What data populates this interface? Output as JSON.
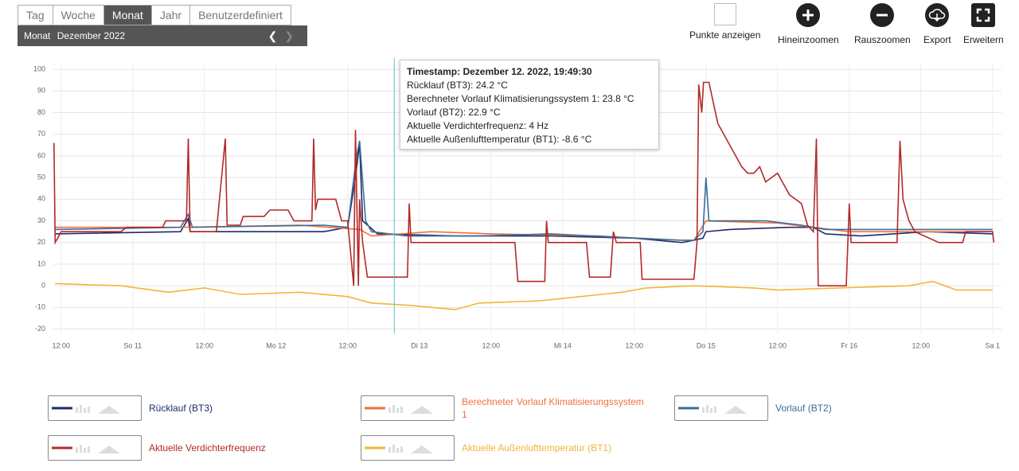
{
  "ui": {
    "tabs": [
      "Tag",
      "Woche",
      "Monat",
      "Jahr",
      "Benutzerdefiniert"
    ],
    "active_tab": 2,
    "period_label": "Monat",
    "period_value": "Dezember 2022",
    "toolbar": [
      "Punkte anzeigen",
      "Hineinzoomen",
      "Rauszoomen",
      "Export",
      "Erweitern"
    ]
  },
  "chart_data": {
    "type": "line",
    "xlim": [
      -1.3,
      157.5
    ],
    "ylim": [
      -22,
      103
    ],
    "yticks": [
      -20,
      -10,
      0,
      10,
      20,
      30,
      40,
      50,
      60,
      70,
      80,
      90,
      100
    ],
    "xticks": [
      {
        "value": 0,
        "label": "12:00"
      },
      {
        "value": 12,
        "label": "So 11"
      },
      {
        "value": 24,
        "label": "12:00"
      },
      {
        "value": 36,
        "label": "Mo 12"
      },
      {
        "value": 48,
        "label": "12:00"
      },
      {
        "value": 60,
        "label": "Di 13"
      },
      {
        "value": 72,
        "label": "12:00"
      },
      {
        "value": 84,
        "label": "Mi 14"
      },
      {
        "value": 96,
        "label": "12:00"
      },
      {
        "value": 108,
        "label": "Do 15"
      },
      {
        "value": 120,
        "label": "12:00"
      },
      {
        "value": 132,
        "label": "Fr 16"
      },
      {
        "value": 144,
        "label": "12:00"
      },
      {
        "value": 156,
        "label": "Sa 1"
      }
    ],
    "grid": true,
    "tooltip": {
      "x": 55.8,
      "timestamp": "Timestamp: Dezember 12. 2022, 19:49:30",
      "lines": [
        "Rücklauf (BT3): 24.2 °C",
        "Berechneter Vorlauf Klimatisierungssystem 1: 23.8 °C",
        "Vorlauf (BT2): 22.9 °C",
        "Aktuelle Verdichterfrequenz: 4 Hz",
        "Aktuelle Außenlufttemperatur (BT1): -8.6 °C"
      ]
    },
    "series": [
      {
        "name": "Rücklauf (BT3)",
        "color": "#1f2a6b",
        "x": [
          -1,
          20,
          21.3,
          21.6,
          44,
          48,
          49.3,
          50,
          50.5,
          53,
          66,
          82,
          96,
          104,
          106,
          107.5,
          108,
          112,
          122,
          126,
          128,
          134,
          145,
          156
        ],
        "values": [
          24,
          25,
          31,
          25,
          25,
          27,
          50,
          66,
          30,
          24,
          23,
          23,
          22,
          20,
          21,
          22,
          25,
          26,
          27,
          27,
          24,
          23,
          25,
          24
        ]
      },
      {
        "name": "Berechneter Vorlauf Klimatisierungssystem 1",
        "color": "#f0703a",
        "x": [
          -1,
          20,
          40,
          50,
          52,
          62,
          72,
          90,
          104,
          106,
          108,
          120,
          126,
          132,
          156
        ],
        "values": [
          27,
          27,
          28,
          26,
          23,
          25,
          24,
          23,
          21,
          21,
          30,
          29,
          27,
          25,
          25
        ]
      },
      {
        "name": "Vorlauf (BT2)",
        "color": "#3b6e99",
        "x": [
          -1,
          20,
          21.3,
          22,
          44,
          48,
          49.5,
          50,
          51,
          52,
          58,
          70,
          82,
          96,
          104,
          106,
          107.5,
          108,
          108.5,
          118,
          124,
          128,
          140,
          156
        ],
        "values": [
          26,
          27,
          33,
          27,
          28,
          27,
          60,
          67,
          30,
          25,
          23,
          23,
          24,
          22,
          21,
          21,
          25,
          50,
          30,
          30,
          28,
          26,
          26,
          26
        ]
      },
      {
        "name": "Aktuelle Verdichterfrequenz",
        "color": "#b22a2a",
        "x": [
          -1.2,
          -1,
          0,
          10,
          11,
          17,
          17.5,
          21,
          21.3,
          21.6,
          26,
          27.5,
          27.8,
          30,
          30.5,
          34,
          35,
          38,
          39,
          42,
          42.3,
          42.6,
          43,
          46,
          47,
          48,
          49,
          49.3,
          49.8,
          50,
          50.5,
          51.3,
          58,
          58.3,
          58.6,
          76,
          76.5,
          81,
          81.3,
          81.6,
          88,
          88.5,
          92,
          92.5,
          93,
          97,
          97.3,
          106,
          106.5,
          106.8,
          107.3,
          107.6,
          108.5,
          110,
          113,
          114,
          115,
          116,
          117,
          118,
          120,
          122,
          124,
          125,
          126,
          126.5,
          126.8,
          131.5,
          132,
          132.3,
          140,
          140.5,
          141,
          141.5,
          142,
          143,
          147,
          151,
          151.5,
          156,
          156.2
        ],
        "values": [
          66,
          20,
          25,
          25,
          27,
          27,
          30,
          30,
          68,
          25,
          25,
          68,
          28,
          28,
          32,
          32,
          35,
          35,
          30,
          30,
          68,
          35,
          40,
          40,
          30,
          30,
          0,
          72,
          0,
          40,
          20,
          4,
          4,
          38,
          20,
          20,
          2,
          2,
          30,
          20,
          20,
          4,
          4,
          25,
          20,
          20,
          3,
          3,
          20,
          93,
          80,
          94,
          94,
          75,
          60,
          55,
          52,
          52,
          55,
          48,
          52,
          42,
          38,
          28,
          25,
          68,
          0,
          0,
          38,
          20,
          20,
          67,
          40,
          35,
          30,
          25,
          20,
          20,
          25,
          25,
          20
        ]
      },
      {
        "name": "Aktuelle Außenlufttemperatur (BT1)",
        "color": "#f2b53a",
        "x": [
          -1,
          10,
          18,
          24,
          30,
          40,
          48,
          52,
          58,
          66,
          70,
          80,
          94,
          98,
          106,
          116,
          120,
          130,
          142,
          146,
          150,
          156
        ],
        "values": [
          1,
          0,
          -3,
          -1,
          -4,
          -3,
          -5,
          -8,
          -9,
          -11,
          -8,
          -7,
          -3,
          -1,
          0,
          -1,
          -2,
          -1,
          0,
          2,
          -2,
          -2
        ]
      }
    ]
  }
}
